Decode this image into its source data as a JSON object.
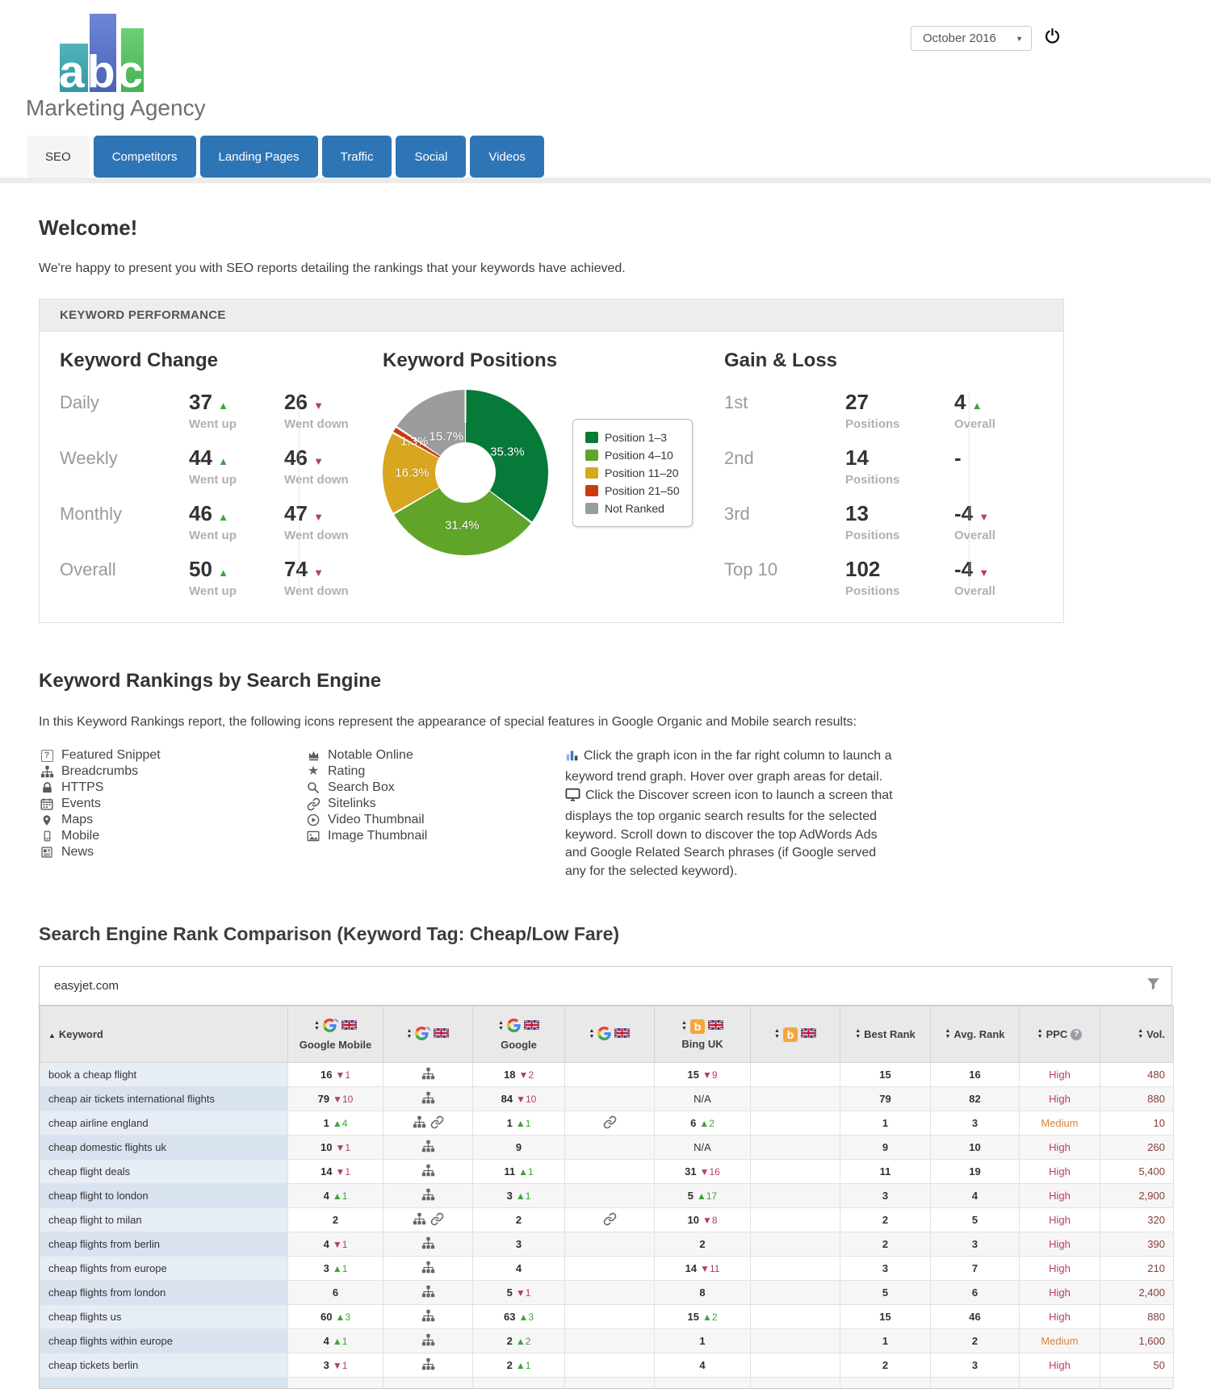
{
  "header": {
    "brand_abc": "abc",
    "brand_name": "Marketing Agency",
    "period_selector": {
      "value": "October 2016"
    }
  },
  "tabs": [
    {
      "label": "SEO",
      "active": true
    },
    {
      "label": "Competitors",
      "active": false
    },
    {
      "label": "Landing Pages",
      "active": false
    },
    {
      "label": "Traffic",
      "active": false
    },
    {
      "label": "Social",
      "active": false
    },
    {
      "label": "Videos",
      "active": false
    }
  ],
  "welcome": {
    "title": "Welcome!",
    "intro": "We're happy to present you with SEO reports detailing the rankings that your keywords have achieved."
  },
  "performance": {
    "panel_title": "KEYWORD PERFORMANCE",
    "keyword_change": {
      "title": "Keyword Change",
      "up_caption": "Went up",
      "down_caption": "Went down",
      "rows": [
        {
          "label": "Daily",
          "up": 37,
          "down": 26
        },
        {
          "label": "Weekly",
          "up": 44,
          "down": 46
        },
        {
          "label": "Monthly",
          "up": 46,
          "down": 47
        },
        {
          "label": "Overall",
          "up": 50,
          "down": 74
        }
      ]
    },
    "gain_loss": {
      "title": "Gain & Loss",
      "positions_caption": "Positions",
      "overall_caption": "Overall",
      "rows": [
        {
          "label": "1st",
          "positions": 27,
          "overall": "4",
          "direction": "up"
        },
        {
          "label": "2nd",
          "positions": 14,
          "overall": "-",
          "direction": null
        },
        {
          "label": "3rd",
          "positions": 13,
          "overall": "-4",
          "direction": "down"
        },
        {
          "label": "Top 10",
          "positions": 102,
          "overall": "-4",
          "direction": "down"
        }
      ]
    }
  },
  "chart_data": {
    "type": "pie",
    "donut": true,
    "title": "Keyword Positions",
    "labels": [
      "Position 1–3",
      "Position 4–10",
      "Position 11–20",
      "Position 21–50",
      "Not Ranked"
    ],
    "values": [
      35.3,
      31.4,
      16.3,
      1.3,
      15.7
    ],
    "value_labels": [
      "35.3%",
      "31.4%",
      "16.3%",
      "1.3%",
      "15.7%"
    ],
    "colors": [
      "#077a3a",
      "#61a42a",
      "#d8a61f",
      "#c93c0a",
      "#9c9c9c"
    ],
    "unit": "%",
    "legend_position": "right"
  },
  "rankings": {
    "title": "Keyword Rankings by Search Engine",
    "intro": "In this Keyword Rankings report, the following icons represent the appearance of special features in Google Organic and Mobile search results:",
    "legend_left": [
      {
        "icon": "featured-snippet-icon",
        "label": "Featured Snippet"
      },
      {
        "icon": "breadcrumbs-icon",
        "label": "Breadcrumbs"
      },
      {
        "icon": "https-icon",
        "label": "HTTPS"
      },
      {
        "icon": "events-icon",
        "label": "Events"
      },
      {
        "icon": "maps-icon",
        "label": "Maps"
      },
      {
        "icon": "mobile-icon",
        "label": "Mobile"
      },
      {
        "icon": "news-icon",
        "label": "News"
      }
    ],
    "legend_middle": [
      {
        "icon": "notable-online-icon",
        "label": "Notable Online"
      },
      {
        "icon": "rating-icon",
        "label": "Rating"
      },
      {
        "icon": "search-box-icon",
        "label": "Search Box"
      },
      {
        "icon": "sitelinks-icon",
        "label": "Sitelinks"
      },
      {
        "icon": "video-thumbnail-icon",
        "label": "Video Thumbnail"
      },
      {
        "icon": "image-thumbnail-icon",
        "label": "Image Thumbnail"
      }
    ],
    "notes": [
      {
        "icon": "graph-icon",
        "text": "Click the graph icon in the far right column to launch a keyword trend graph. Hover over graph areas for detail."
      },
      {
        "icon": "discover-screen-icon",
        "text": "Click the Discover screen icon to launch a screen that displays the top organic search results for the selected keyword. Scroll down to discover the top AdWords Ads and Google Related Search phrases (if Google served any for the selected keyword)."
      }
    ]
  },
  "comparison": {
    "title": "Search Engine Rank Comparison (Keyword Tag: Cheap/Low Fare)",
    "domain": "easyjet.com",
    "columns": [
      {
        "key": "keyword",
        "label": "Keyword",
        "sorted": "asc"
      },
      {
        "key": "google_mobile",
        "label": "Google Mobile",
        "engine": "google-mobile-icon",
        "flag": "uk-flag-icon"
      },
      {
        "key": "google_mobile_features",
        "label": "",
        "engine": "google-mobile-icon",
        "flag": "uk-flag-icon"
      },
      {
        "key": "google",
        "label": "Google",
        "engine": "google-icon",
        "flag": "uk-flag-icon"
      },
      {
        "key": "google_features",
        "label": "",
        "engine": "google-icon",
        "flag": "uk-flag-icon"
      },
      {
        "key": "bing",
        "label": "Bing UK",
        "engine": "bing-icon",
        "flag": "uk-flag-icon"
      },
      {
        "key": "bing_features",
        "label": "",
        "engine": "bing-icon",
        "flag": "uk-flag-icon"
      },
      {
        "key": "best_rank",
        "label": "Best Rank"
      },
      {
        "key": "avg_rank",
        "label": "Avg. Rank"
      },
      {
        "key": "ppc",
        "label": "PPC",
        "help": true
      },
      {
        "key": "vol",
        "label": "Vol."
      }
    ],
    "rows": [
      {
        "keyword": "book a cheap flight",
        "google_mobile": {
          "rank": "16",
          "change": -1
        },
        "google_mobile_features": [
          "breadcrumbs-icon"
        ],
        "google": {
          "rank": "18",
          "change": -2
        },
        "google_features": [],
        "bing": {
          "rank": "15",
          "change": -9
        },
        "bing_features": [],
        "best_rank": "15",
        "avg_rank": "16",
        "ppc": "High",
        "vol": "480"
      },
      {
        "keyword": "cheap air tickets international flights",
        "google_mobile": {
          "rank": "79",
          "change": -10
        },
        "google_mobile_features": [
          "breadcrumbs-icon"
        ],
        "google": {
          "rank": "84",
          "change": -10
        },
        "google_features": [],
        "bing": {
          "rank": "N/A",
          "change": null
        },
        "bing_features": [],
        "best_rank": "79",
        "avg_rank": "82",
        "ppc": "High",
        "vol": "880"
      },
      {
        "keyword": "cheap airline england",
        "google_mobile": {
          "rank": "1",
          "change": 4
        },
        "google_mobile_features": [
          "breadcrumbs-icon",
          "sitelinks-icon"
        ],
        "google": {
          "rank": "1",
          "change": 1
        },
        "google_features": [
          "sitelinks-icon"
        ],
        "bing": {
          "rank": "6",
          "change": 2
        },
        "bing_features": [],
        "best_rank": "1",
        "avg_rank": "3",
        "ppc": "Medium",
        "vol": "10"
      },
      {
        "keyword": "cheap domestic flights uk",
        "google_mobile": {
          "rank": "10",
          "change": -1
        },
        "google_mobile_features": [
          "breadcrumbs-icon"
        ],
        "google": {
          "rank": "9",
          "change": null
        },
        "google_features": [],
        "bing": {
          "rank": "N/A",
          "change": null
        },
        "bing_features": [],
        "best_rank": "9",
        "avg_rank": "10",
        "ppc": "High",
        "vol": "260"
      },
      {
        "keyword": "cheap flight deals",
        "google_mobile": {
          "rank": "14",
          "change": -1
        },
        "google_mobile_features": [
          "breadcrumbs-icon"
        ],
        "google": {
          "rank": "11",
          "change": 1
        },
        "google_features": [],
        "bing": {
          "rank": "31",
          "change": -16
        },
        "bing_features": [],
        "best_rank": "11",
        "avg_rank": "19",
        "ppc": "High",
        "vol": "5,400"
      },
      {
        "keyword": "cheap flight to london",
        "google_mobile": {
          "rank": "4",
          "change": 1
        },
        "google_mobile_features": [
          "breadcrumbs-icon"
        ],
        "google": {
          "rank": "3",
          "change": 1
        },
        "google_features": [],
        "bing": {
          "rank": "5",
          "change": 17
        },
        "bing_features": [],
        "best_rank": "3",
        "avg_rank": "4",
        "ppc": "High",
        "vol": "2,900"
      },
      {
        "keyword": "cheap flight to milan",
        "google_mobile": {
          "rank": "2",
          "change": null
        },
        "google_mobile_features": [
          "breadcrumbs-icon",
          "sitelinks-icon"
        ],
        "google": {
          "rank": "2",
          "change": null
        },
        "google_features": [
          "sitelinks-icon"
        ],
        "bing": {
          "rank": "10",
          "change": -8
        },
        "bing_features": [],
        "best_rank": "2",
        "avg_rank": "5",
        "ppc": "High",
        "vol": "320"
      },
      {
        "keyword": "cheap flights from berlin",
        "google_mobile": {
          "rank": "4",
          "change": -1
        },
        "google_mobile_features": [
          "breadcrumbs-icon"
        ],
        "google": {
          "rank": "3",
          "change": null
        },
        "google_features": [],
        "bing": {
          "rank": "2",
          "change": null
        },
        "bing_features": [],
        "best_rank": "2",
        "avg_rank": "3",
        "ppc": "High",
        "vol": "390"
      },
      {
        "keyword": "cheap flights from europe",
        "google_mobile": {
          "rank": "3",
          "change": 1
        },
        "google_mobile_features": [
          "breadcrumbs-icon"
        ],
        "google": {
          "rank": "4",
          "change": null
        },
        "google_features": [],
        "bing": {
          "rank": "14",
          "change": -11
        },
        "bing_features": [],
        "best_rank": "3",
        "avg_rank": "7",
        "ppc": "High",
        "vol": "210"
      },
      {
        "keyword": "cheap flights from london",
        "google_mobile": {
          "rank": "6",
          "change": null
        },
        "google_mobile_features": [
          "breadcrumbs-icon"
        ],
        "google": {
          "rank": "5",
          "change": -1
        },
        "google_features": [],
        "bing": {
          "rank": "8",
          "change": null
        },
        "bing_features": [],
        "best_rank": "5",
        "avg_rank": "6",
        "ppc": "High",
        "vol": "2,400"
      },
      {
        "keyword": "cheap flights us",
        "google_mobile": {
          "rank": "60",
          "change": 3
        },
        "google_mobile_features": [
          "breadcrumbs-icon"
        ],
        "google": {
          "rank": "63",
          "change": 3
        },
        "google_features": [],
        "bing": {
          "rank": "15",
          "change": 2
        },
        "bing_features": [],
        "best_rank": "15",
        "avg_rank": "46",
        "ppc": "High",
        "vol": "880"
      },
      {
        "keyword": "cheap flights within europe",
        "google_mobile": {
          "rank": "4",
          "change": 1
        },
        "google_mobile_features": [
          "breadcrumbs-icon"
        ],
        "google": {
          "rank": "2",
          "change": 2
        },
        "google_features": [],
        "bing": {
          "rank": "1",
          "change": null
        },
        "bing_features": [],
        "best_rank": "1",
        "avg_rank": "2",
        "ppc": "Medium",
        "vol": "1,600"
      },
      {
        "keyword": "cheap tickets berlin",
        "google_mobile": {
          "rank": "3",
          "change": -1
        },
        "google_mobile_features": [
          "breadcrumbs-icon"
        ],
        "google": {
          "rank": "2",
          "change": 1
        },
        "google_features": [],
        "bing": {
          "rank": "4",
          "change": null
        },
        "bing_features": [],
        "best_rank": "2",
        "avg_rank": "3",
        "ppc": "High",
        "vol": "50"
      }
    ]
  }
}
